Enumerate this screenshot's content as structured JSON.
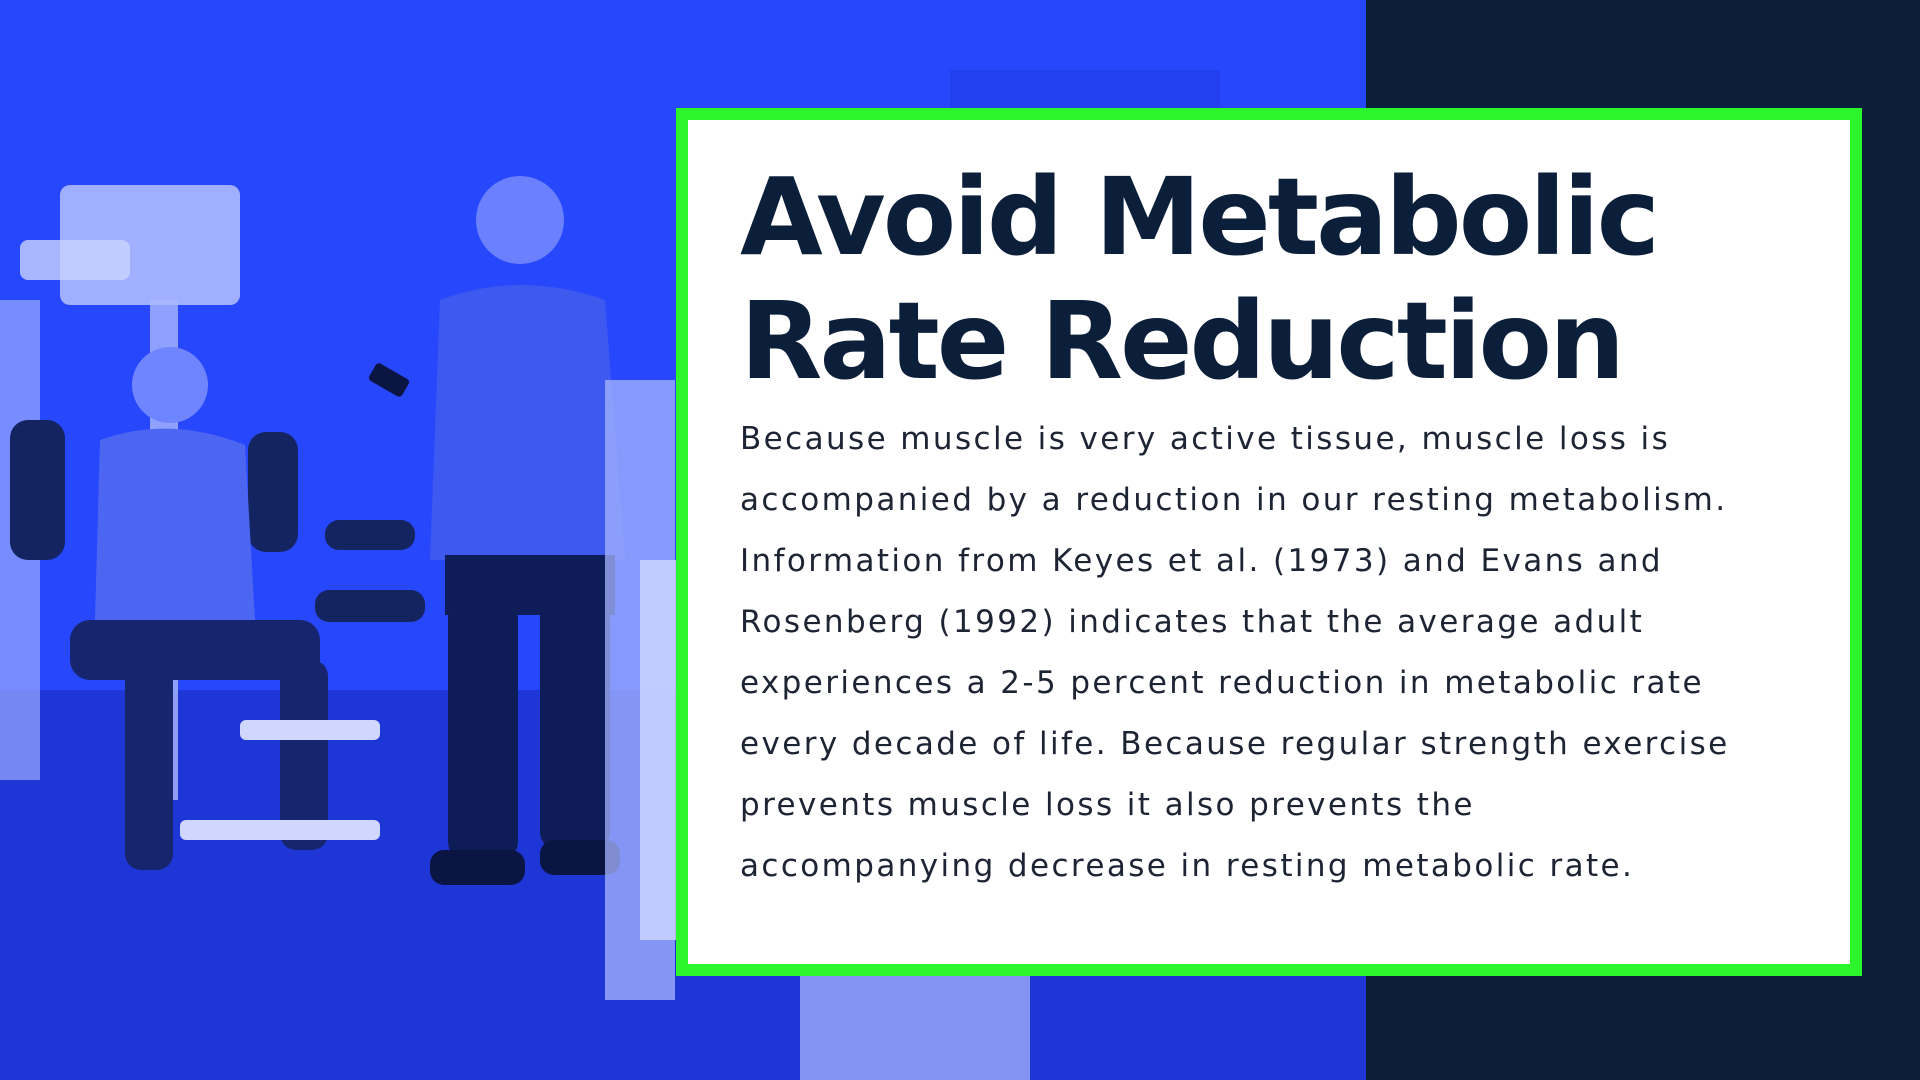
{
  "slide": {
    "title_lines": [
      "Avoid Metabolic",
      "Rate Reduction"
    ],
    "body_lines": [
      "Because muscle is very active tissue, muscle loss is",
      "accompanied by a reduction in our resting metabolism.",
      "Information from Keyes et al. (1973) and Evans and",
      "Rosenberg (1992) indicates that the average adult",
      "experiences a 2-5 percent reduction in metabolic rate",
      "every decade of life. Because regular strength exercise",
      "prevents muscle loss it also prevents the",
      "accompanying decrease in resting metabolic rate."
    ]
  },
  "colors": {
    "photo_tint": "#2344fb",
    "dark_panel": "#0b1f3a",
    "card_border": "#2cf52c",
    "card_background": "#ffffff",
    "title_text": "#0b1f3a",
    "body_text": "#1d2433"
  }
}
